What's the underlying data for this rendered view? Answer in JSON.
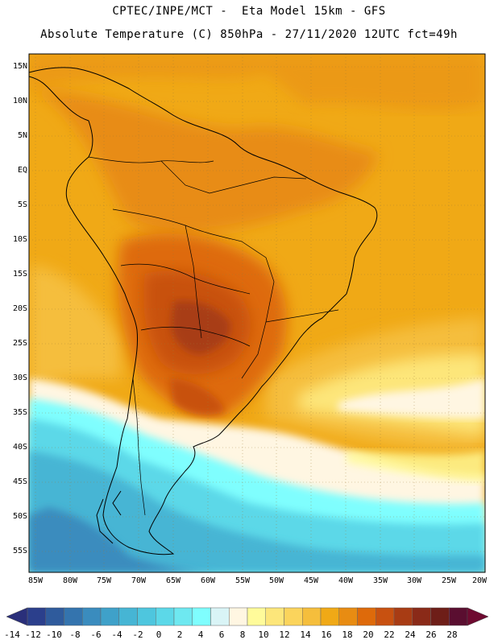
{
  "title": {
    "line1": "CPTEC/INPE/MCT -  Eta Model 15km - GFS",
    "line2": "Absolute Temperature (C) 850hPa - 27/11/2020 12UTC fct=49h"
  },
  "map": {
    "region": "South America",
    "lat_range": [
      -57.5,
      16.5
    ],
    "lon_range": [
      -86,
      -20
    ],
    "grid": "dotted",
    "lat_ticks": [
      "15N",
      "10N",
      "5N",
      "EQ",
      "5S",
      "10S",
      "15S",
      "20S",
      "25S",
      "30S",
      "35S",
      "40S",
      "45S",
      "50S",
      "55S"
    ],
    "lat_values": [
      15,
      10,
      5,
      0,
      -5,
      -10,
      -15,
      -20,
      -25,
      -30,
      -35,
      -40,
      -45,
      -50,
      -55
    ],
    "lon_ticks": [
      "85W",
      "80W",
      "75W",
      "70W",
      "65W",
      "60W",
      "55W",
      "50W",
      "45W",
      "40W",
      "35W",
      "30W",
      "25W",
      "20W"
    ],
    "lon_values": [
      -85,
      -80,
      -75,
      -70,
      -65,
      -60,
      -55,
      -50,
      -45,
      -40,
      -35,
      -30,
      -25,
      -20
    ]
  },
  "colorbar": {
    "labels": [
      "-14",
      "-12",
      "-10",
      "-8",
      "-6",
      "-4",
      "-2",
      "0",
      "2",
      "4",
      "6",
      "8",
      "10",
      "12",
      "14",
      "16",
      "18",
      "20",
      "22",
      "24",
      "26",
      "28"
    ],
    "colors": [
      "#2b3f8c",
      "#2f5b9c",
      "#3474ae",
      "#3a8cbe",
      "#3fa1c9",
      "#46b5d4",
      "#4ec6de",
      "#5cd8e8",
      "#6ee8f0",
      "#7ffefe",
      "#d9f4f6",
      "#fff6e2",
      "#fffb9a",
      "#fde67a",
      "#fbd45c",
      "#f5be3c",
      "#f0a916",
      "#e88c12",
      "#de6a0a",
      "#c85110",
      "#a83c14",
      "#8a2a18",
      "#6e1e18",
      "#5a0e30"
    ],
    "under_color": "#2a2f7a",
    "over_color": "#6e0a30"
  }
}
